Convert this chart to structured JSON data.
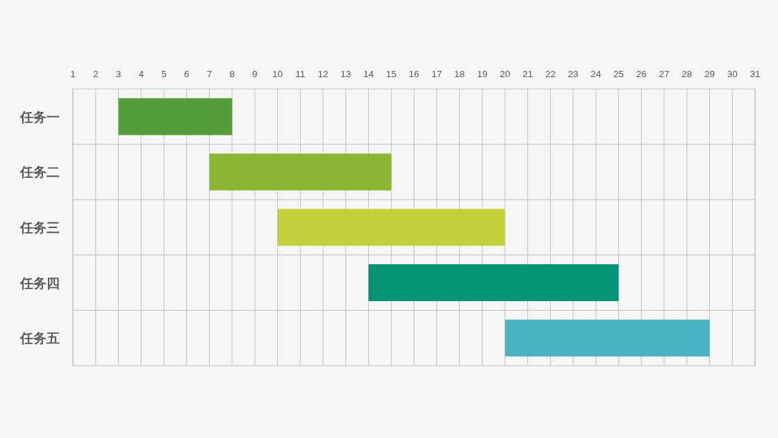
{
  "chart_data": {
    "type": "bar",
    "orientation": "horizontal",
    "categories": [
      "任务一",
      "任务二",
      "任务三",
      "任务四",
      "任务五"
    ],
    "base": [
      3,
      7,
      10,
      14,
      20
    ],
    "values": [
      5,
      8,
      10,
      11,
      9
    ],
    "colors": [
      "#539e3a",
      "#8bb735",
      "#c3d13b",
      "#039474",
      "#4ab4c5"
    ],
    "xlim": [
      1,
      31
    ],
    "xticks": [
      1,
      2,
      3,
      4,
      5,
      6,
      7,
      8,
      9,
      10,
      11,
      12,
      13,
      14,
      15,
      16,
      17,
      18,
      19,
      20,
      21,
      22,
      23,
      24,
      25,
      26,
      27,
      28,
      29,
      30,
      31
    ],
    "grid": true
  }
}
